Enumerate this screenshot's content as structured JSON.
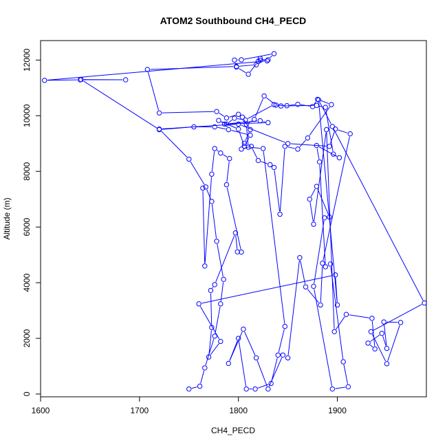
{
  "chart_data": {
    "type": "line",
    "title": "ATOM2 Southbound CH4_PECD",
    "xlabel": "CH4_PECD",
    "ylabel": "Altitude (m)",
    "xlim": [
      1600,
      1990
    ],
    "ylim": [
      -100,
      12700
    ],
    "xticks": [
      1600,
      1700,
      1800,
      1900
    ],
    "yticks": [
      0,
      2000,
      4000,
      6000,
      8000,
      10000,
      12000
    ],
    "marker": "open-circle",
    "series_color": "#0000ff",
    "series": [
      {
        "points": [
          [
            1750,
            180
          ],
          [
            1761,
            280
          ],
          [
            1766,
            940
          ],
          [
            1776,
            2080
          ],
          [
            1782,
            3240
          ],
          [
            1785,
            4120
          ],
          [
            1778,
            5490
          ],
          [
            1773,
            6920
          ],
          [
            1767,
            7440
          ],
          [
            1750,
            8440
          ],
          [
            1720,
            9520
          ],
          [
            1800,
            9700
          ],
          [
            1850,
            9000
          ],
          [
            1892,
            8900
          ],
          [
            1898,
            9520
          ],
          [
            1913,
            9350
          ],
          [
            1885,
            4700
          ],
          [
            1883,
            3200
          ],
          [
            1868,
            3850
          ],
          [
            1862,
            4900
          ],
          [
            1850,
            1300
          ],
          [
            1845,
            1400
          ],
          [
            1830,
            180
          ],
          [
            1818,
            1300
          ],
          [
            1805,
            2330
          ],
          [
            1790,
            1100
          ],
          [
            1800,
            2000
          ],
          [
            1808,
            180
          ],
          [
            1817,
            180
          ],
          [
            1833,
            380
          ],
          [
            1840,
            1400
          ],
          [
            1847,
            2430
          ],
          [
            1825,
            8820
          ],
          [
            1810,
            8870
          ],
          [
            1808,
            9690
          ],
          [
            1816,
            9870
          ],
          [
            1826,
            10710
          ],
          [
            1838,
            10380
          ],
          [
            1849,
            10360
          ],
          [
            1860,
            10410
          ],
          [
            1875,
            10330
          ],
          [
            1880,
            10590
          ],
          [
            1894,
            10400
          ],
          [
            1870,
            9200
          ],
          [
            1860,
            8800
          ],
          [
            1847,
            8900
          ],
          [
            1842,
            6460
          ],
          [
            1836,
            8140
          ],
          [
            1832,
            8240
          ],
          [
            1820,
            8390
          ],
          [
            1813,
            8900
          ],
          [
            1803,
            8800
          ],
          [
            1806,
            9010
          ],
          [
            1812,
            9500
          ],
          [
            1804,
            9950
          ],
          [
            1800,
            10050
          ],
          [
            1788,
            9920
          ],
          [
            1778,
            10150
          ],
          [
            1720,
            10100
          ],
          [
            1708,
            11660
          ],
          [
            1798,
            11770
          ],
          [
            1818,
            11830
          ],
          [
            1822,
            11990
          ],
          [
            1830,
            12010
          ],
          [
            1836,
            12230
          ],
          [
            1803,
            12010
          ],
          [
            1796,
            12000
          ],
          [
            1798,
            11750
          ],
          [
            1810,
            11490
          ],
          [
            1820,
            11950
          ],
          [
            1822,
            12060
          ],
          [
            1829,
            11970
          ],
          [
            1604,
            11270
          ],
          [
            1640,
            11290
          ],
          [
            1686,
            11290
          ],
          [
            1641,
            11300
          ],
          [
            1720,
            9500
          ],
          [
            1755,
            9600
          ],
          [
            1776,
            9600
          ],
          [
            1790,
            9500
          ],
          [
            1812,
            9300
          ],
          [
            1806,
            8900
          ],
          [
            1800,
            9520
          ],
          [
            1780,
            9830
          ],
          [
            1786,
            9700
          ],
          [
            1822,
            9820
          ],
          [
            1830,
            9750
          ],
          [
            1788,
            9700
          ],
          [
            1796,
            9910
          ],
          [
            1807,
            9850
          ],
          [
            1836,
            10400
          ],
          [
            1843,
            10350
          ],
          [
            1879,
            10370
          ],
          [
            1888,
            10300
          ],
          [
            1896,
            8620
          ],
          [
            1902,
            8490
          ],
          [
            1879,
            8930
          ],
          [
            1882,
            8340
          ],
          [
            1888,
            4570
          ],
          [
            1893,
            4670
          ],
          [
            1906,
            1160
          ],
          [
            1911,
            260
          ],
          [
            1895,
            180
          ],
          [
            1876,
            3870
          ],
          [
            1887,
            6330
          ],
          [
            1892,
            6360
          ],
          [
            1879,
            7460
          ],
          [
            1872,
            7000
          ],
          [
            1876,
            6100
          ],
          [
            1889,
            9500
          ],
          [
            1897,
            2240
          ],
          [
            1909,
            2860
          ],
          [
            1935,
            2720
          ],
          [
            1938,
            1620
          ],
          [
            1931,
            1830
          ],
          [
            1945,
            2180
          ],
          [
            1950,
            1640
          ],
          [
            1947,
            2590
          ],
          [
            1964,
            2570
          ],
          [
            1950,
            1090
          ],
          [
            1934,
            2240
          ],
          [
            1988,
            3270
          ],
          [
            1895,
            9610
          ],
          [
            1881,
            10570
          ],
          [
            1900,
            3200
          ],
          [
            1898,
            4280
          ],
          [
            1760,
            3240
          ],
          [
            1782,
            1890
          ],
          [
            1770,
            1330
          ],
          [
            1773,
            2390
          ],
          [
            1772,
            3720
          ],
          [
            1776,
            3930
          ],
          [
            1797,
            5790
          ],
          [
            1799,
            5110
          ],
          [
            1803,
            5100
          ],
          [
            1788,
            7520
          ],
          [
            1791,
            8460
          ],
          [
            1782,
            8660
          ],
          [
            1776,
            8820
          ],
          [
            1773,
            7900
          ],
          [
            1766,
            4600
          ],
          [
            1764,
            7400
          ]
        ]
      }
    ]
  }
}
